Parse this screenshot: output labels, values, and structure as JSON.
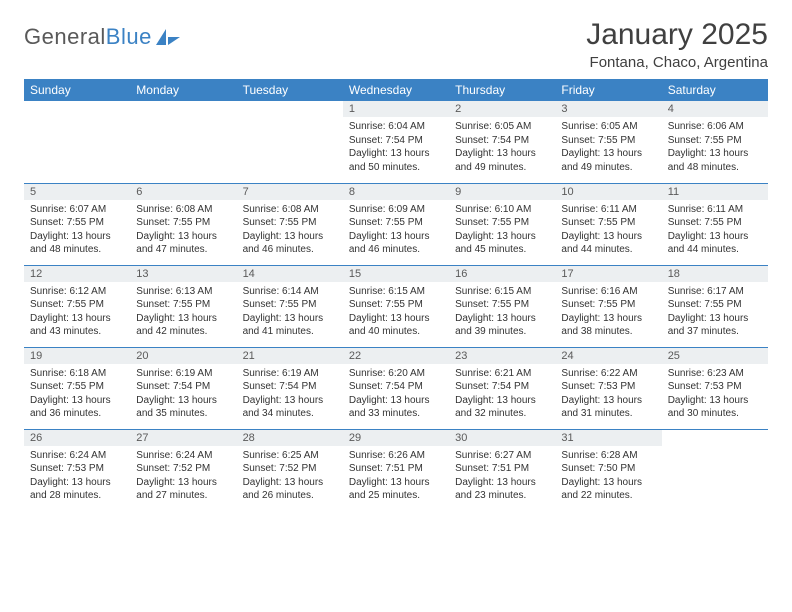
{
  "logo": {
    "word1": "General",
    "word2": "Blue"
  },
  "title": "January 2025",
  "subtitle": "Fontana, Chaco, Argentina",
  "colors": {
    "header_bg": "#3b82c4",
    "header_fg": "#ffffff",
    "daynum_bg": "#eceff1",
    "text": "#333333",
    "rule": "#3b82c4"
  },
  "weekdays": [
    "Sunday",
    "Monday",
    "Tuesday",
    "Wednesday",
    "Thursday",
    "Friday",
    "Saturday"
  ],
  "weeks": [
    [
      {
        "empty": true
      },
      {
        "empty": true
      },
      {
        "empty": true
      },
      {
        "n": "1",
        "sr": "6:04 AM",
        "ss": "7:54 PM",
        "dl": "13 hours and 50 minutes."
      },
      {
        "n": "2",
        "sr": "6:05 AM",
        "ss": "7:54 PM",
        "dl": "13 hours and 49 minutes."
      },
      {
        "n": "3",
        "sr": "6:05 AM",
        "ss": "7:55 PM",
        "dl": "13 hours and 49 minutes."
      },
      {
        "n": "4",
        "sr": "6:06 AM",
        "ss": "7:55 PM",
        "dl": "13 hours and 48 minutes."
      }
    ],
    [
      {
        "n": "5",
        "sr": "6:07 AM",
        "ss": "7:55 PM",
        "dl": "13 hours and 48 minutes."
      },
      {
        "n": "6",
        "sr": "6:08 AM",
        "ss": "7:55 PM",
        "dl": "13 hours and 47 minutes."
      },
      {
        "n": "7",
        "sr": "6:08 AM",
        "ss": "7:55 PM",
        "dl": "13 hours and 46 minutes."
      },
      {
        "n": "8",
        "sr": "6:09 AM",
        "ss": "7:55 PM",
        "dl": "13 hours and 46 minutes."
      },
      {
        "n": "9",
        "sr": "6:10 AM",
        "ss": "7:55 PM",
        "dl": "13 hours and 45 minutes."
      },
      {
        "n": "10",
        "sr": "6:11 AM",
        "ss": "7:55 PM",
        "dl": "13 hours and 44 minutes."
      },
      {
        "n": "11",
        "sr": "6:11 AM",
        "ss": "7:55 PM",
        "dl": "13 hours and 44 minutes."
      }
    ],
    [
      {
        "n": "12",
        "sr": "6:12 AM",
        "ss": "7:55 PM",
        "dl": "13 hours and 43 minutes."
      },
      {
        "n": "13",
        "sr": "6:13 AM",
        "ss": "7:55 PM",
        "dl": "13 hours and 42 minutes."
      },
      {
        "n": "14",
        "sr": "6:14 AM",
        "ss": "7:55 PM",
        "dl": "13 hours and 41 minutes."
      },
      {
        "n": "15",
        "sr": "6:15 AM",
        "ss": "7:55 PM",
        "dl": "13 hours and 40 minutes."
      },
      {
        "n": "16",
        "sr": "6:15 AM",
        "ss": "7:55 PM",
        "dl": "13 hours and 39 minutes."
      },
      {
        "n": "17",
        "sr": "6:16 AM",
        "ss": "7:55 PM",
        "dl": "13 hours and 38 minutes."
      },
      {
        "n": "18",
        "sr": "6:17 AM",
        "ss": "7:55 PM",
        "dl": "13 hours and 37 minutes."
      }
    ],
    [
      {
        "n": "19",
        "sr": "6:18 AM",
        "ss": "7:55 PM",
        "dl": "13 hours and 36 minutes."
      },
      {
        "n": "20",
        "sr": "6:19 AM",
        "ss": "7:54 PM",
        "dl": "13 hours and 35 minutes."
      },
      {
        "n": "21",
        "sr": "6:19 AM",
        "ss": "7:54 PM",
        "dl": "13 hours and 34 minutes."
      },
      {
        "n": "22",
        "sr": "6:20 AM",
        "ss": "7:54 PM",
        "dl": "13 hours and 33 minutes."
      },
      {
        "n": "23",
        "sr": "6:21 AM",
        "ss": "7:54 PM",
        "dl": "13 hours and 32 minutes."
      },
      {
        "n": "24",
        "sr": "6:22 AM",
        "ss": "7:53 PM",
        "dl": "13 hours and 31 minutes."
      },
      {
        "n": "25",
        "sr": "6:23 AM",
        "ss": "7:53 PM",
        "dl": "13 hours and 30 minutes."
      }
    ],
    [
      {
        "n": "26",
        "sr": "6:24 AM",
        "ss": "7:53 PM",
        "dl": "13 hours and 28 minutes."
      },
      {
        "n": "27",
        "sr": "6:24 AM",
        "ss": "7:52 PM",
        "dl": "13 hours and 27 minutes."
      },
      {
        "n": "28",
        "sr": "6:25 AM",
        "ss": "7:52 PM",
        "dl": "13 hours and 26 minutes."
      },
      {
        "n": "29",
        "sr": "6:26 AM",
        "ss": "7:51 PM",
        "dl": "13 hours and 25 minutes."
      },
      {
        "n": "30",
        "sr": "6:27 AM",
        "ss": "7:51 PM",
        "dl": "13 hours and 23 minutes."
      },
      {
        "n": "31",
        "sr": "6:28 AM",
        "ss": "7:50 PM",
        "dl": "13 hours and 22 minutes."
      },
      {
        "empty": true
      }
    ]
  ],
  "labels": {
    "sunrise": "Sunrise:",
    "sunset": "Sunset:",
    "daylight": "Daylight:"
  }
}
